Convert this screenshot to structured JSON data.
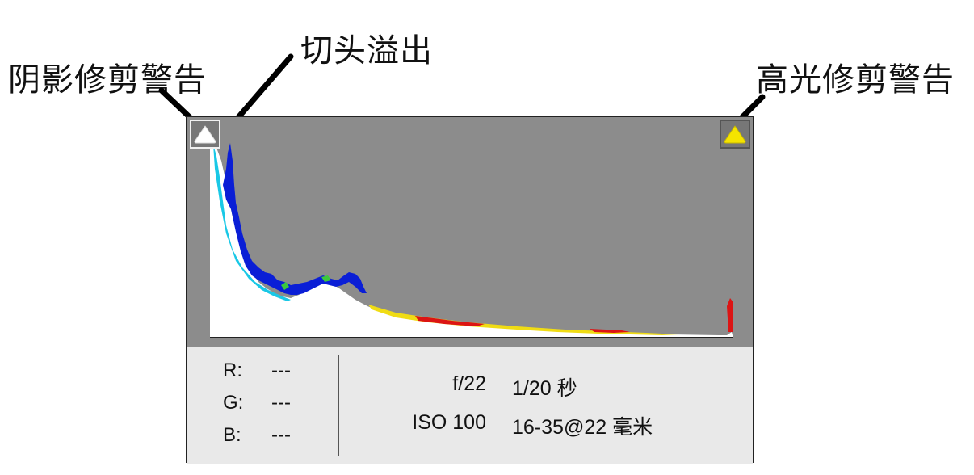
{
  "callouts": {
    "shadow_clip_warning": "阴影修剪警告",
    "top_overflow": "切头溢出",
    "highlight_clip_warning": "高光修剪警告"
  },
  "histogram": {
    "shadow_button_icon": "white-triangle-icon",
    "highlight_button_icon": "yellow-triangle-icon",
    "colors": {
      "background": "#8c8c8c",
      "luminance": "#ffffff",
      "blue": "#0a1ed6",
      "cyan": "#19c8e6",
      "yellow": "#f0dc14",
      "red": "#dc1414",
      "green": "#3cc83c"
    }
  },
  "readout": {
    "r_label": "R:",
    "r_value": "---",
    "g_label": "G:",
    "g_value": "---",
    "b_label": "B:",
    "b_value": "---"
  },
  "exif": {
    "aperture": "f/22",
    "shutter": "1/20 秒",
    "iso": "ISO 100",
    "lens": "16-35@22 毫米"
  }
}
